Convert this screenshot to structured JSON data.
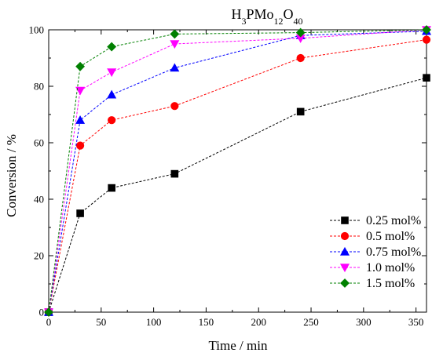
{
  "chart_data": {
    "type": "line",
    "title_parts": [
      {
        "text": "H",
        "sub": false
      },
      {
        "text": "3",
        "sub": true
      },
      {
        "text": "PMo",
        "sub": false
      },
      {
        "text": "12",
        "sub": true
      },
      {
        "text": "O",
        "sub": false
      },
      {
        "text": "40",
        "sub": true
      }
    ],
    "xlabel": "Time / min",
    "ylabel": "Conversion / %",
    "xlim": [
      0,
      360
    ],
    "ylim": [
      0,
      100
    ],
    "xticks": [
      0,
      50,
      100,
      150,
      200,
      250,
      300,
      350
    ],
    "yticks": [
      0,
      20,
      40,
      60,
      80,
      100
    ],
    "grid": false,
    "legend_position": "bottom-right",
    "x": [
      0,
      30,
      60,
      120,
      240,
      360
    ],
    "series": [
      {
        "name": "0.25 mol%",
        "color": "#000000",
        "marker": "square",
        "values": [
          0,
          35,
          44,
          49,
          71,
          83
        ]
      },
      {
        "name": "0.5 mol%",
        "color": "#ff0000",
        "marker": "circle",
        "values": [
          0,
          59,
          68,
          73,
          90,
          96.5
        ]
      },
      {
        "name": "0.75 mol%",
        "color": "#0000ff",
        "marker": "triangle-up",
        "values": [
          0,
          68,
          77,
          86.5,
          98,
          99.5
        ]
      },
      {
        "name": "1.0 mol%",
        "color": "#ff00ff",
        "marker": "triangle-down",
        "values": [
          0,
          78.5,
          85,
          95,
          97,
          100
        ]
      },
      {
        "name": "1.5 mol%",
        "color": "#008000",
        "marker": "diamond",
        "values": [
          0,
          87,
          94,
          98.5,
          99,
          100
        ]
      }
    ]
  }
}
